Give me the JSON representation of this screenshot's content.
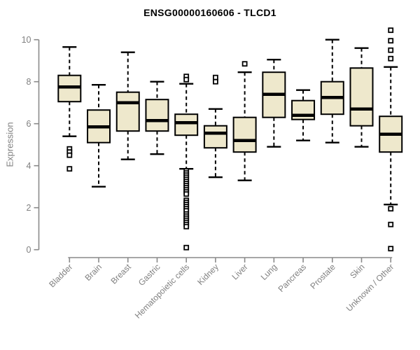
{
  "colors": {
    "box_fill": "#EEE8CC",
    "box_stroke": "#000000",
    "median_stroke": "#000000",
    "whisker_stroke": "#000000",
    "outlier_stroke": "#000000",
    "outlier_fill": "#ffffff",
    "axis": "#8a8a8a",
    "tick_label": "#808080",
    "title": "#000000",
    "background": "#ffffff"
  },
  "chart_data": {
    "type": "box",
    "title": "ENSG00000160606 - TLCD1",
    "xlabel": "",
    "ylabel": "Expression",
    "ylim": [
      0,
      10
    ],
    "yticks": [
      0,
      2,
      4,
      6,
      8,
      10
    ],
    "grid": "off",
    "legend": "none",
    "categories": [
      "Bladder",
      "Brain",
      "Breast",
      "Gastric",
      "Hematopoietic cells",
      "Kidney",
      "Liver",
      "Lung",
      "Pancreas",
      "Prostate",
      "Skin",
      "Unknown / Other"
    ],
    "series": [
      {
        "name": "Bladder",
        "low": 5.4,
        "q1": 7.05,
        "median": 7.75,
        "q3": 8.3,
        "high": 9.65,
        "outliers": [
          4.8,
          4.65,
          4.5,
          3.85
        ]
      },
      {
        "name": "Brain",
        "low": 3.0,
        "q1": 5.1,
        "median": 5.85,
        "q3": 6.65,
        "high": 7.85,
        "outliers": []
      },
      {
        "name": "Breast",
        "low": 4.3,
        "q1": 5.65,
        "median": 7.0,
        "q3": 7.5,
        "high": 9.4,
        "outliers": []
      },
      {
        "name": "Gastric",
        "low": 4.55,
        "q1": 5.65,
        "median": 6.15,
        "q3": 7.15,
        "high": 8.0,
        "outliers": []
      },
      {
        "name": "Hematopoietic cells",
        "low": 3.85,
        "q1": 5.45,
        "median": 6.05,
        "q3": 6.45,
        "high": 7.9,
        "outliers": [
          8.25,
          8.1,
          3.75,
          3.65,
          3.55,
          3.45,
          3.35,
          3.25,
          3.15,
          3.05,
          2.95,
          2.85,
          2.75,
          2.65,
          2.35,
          2.25,
          2.15,
          2.05,
          1.95,
          1.85,
          1.7,
          1.6,
          1.5,
          1.4,
          1.3,
          1.2,
          1.1,
          0.1
        ]
      },
      {
        "name": "Kidney",
        "low": 3.45,
        "q1": 4.85,
        "median": 5.55,
        "q3": 5.9,
        "high": 6.7,
        "outliers": [
          8.2,
          8.0
        ]
      },
      {
        "name": "Liver",
        "low": 3.3,
        "q1": 4.65,
        "median": 5.2,
        "q3": 6.3,
        "high": 8.45,
        "outliers": [
          8.85
        ]
      },
      {
        "name": "Lung",
        "low": 4.9,
        "q1": 6.3,
        "median": 7.4,
        "q3": 8.45,
        "high": 9.05,
        "outliers": []
      },
      {
        "name": "Pancreas",
        "low": 5.2,
        "q1": 6.2,
        "median": 6.4,
        "q3": 7.1,
        "high": 7.6,
        "outliers": []
      },
      {
        "name": "Prostate",
        "low": 5.1,
        "q1": 6.45,
        "median": 7.25,
        "q3": 8.0,
        "high": 10.0,
        "outliers": []
      },
      {
        "name": "Skin",
        "low": 4.9,
        "q1": 5.9,
        "median": 6.7,
        "q3": 8.65,
        "high": 9.6,
        "outliers": []
      },
      {
        "name": "Unknown / Other",
        "low": 2.15,
        "q1": 4.65,
        "median": 5.5,
        "q3": 6.35,
        "high": 8.7,
        "outliers": [
          10.45,
          9.95,
          9.5,
          9.1,
          1.95,
          1.2,
          0.05
        ]
      }
    ]
  }
}
